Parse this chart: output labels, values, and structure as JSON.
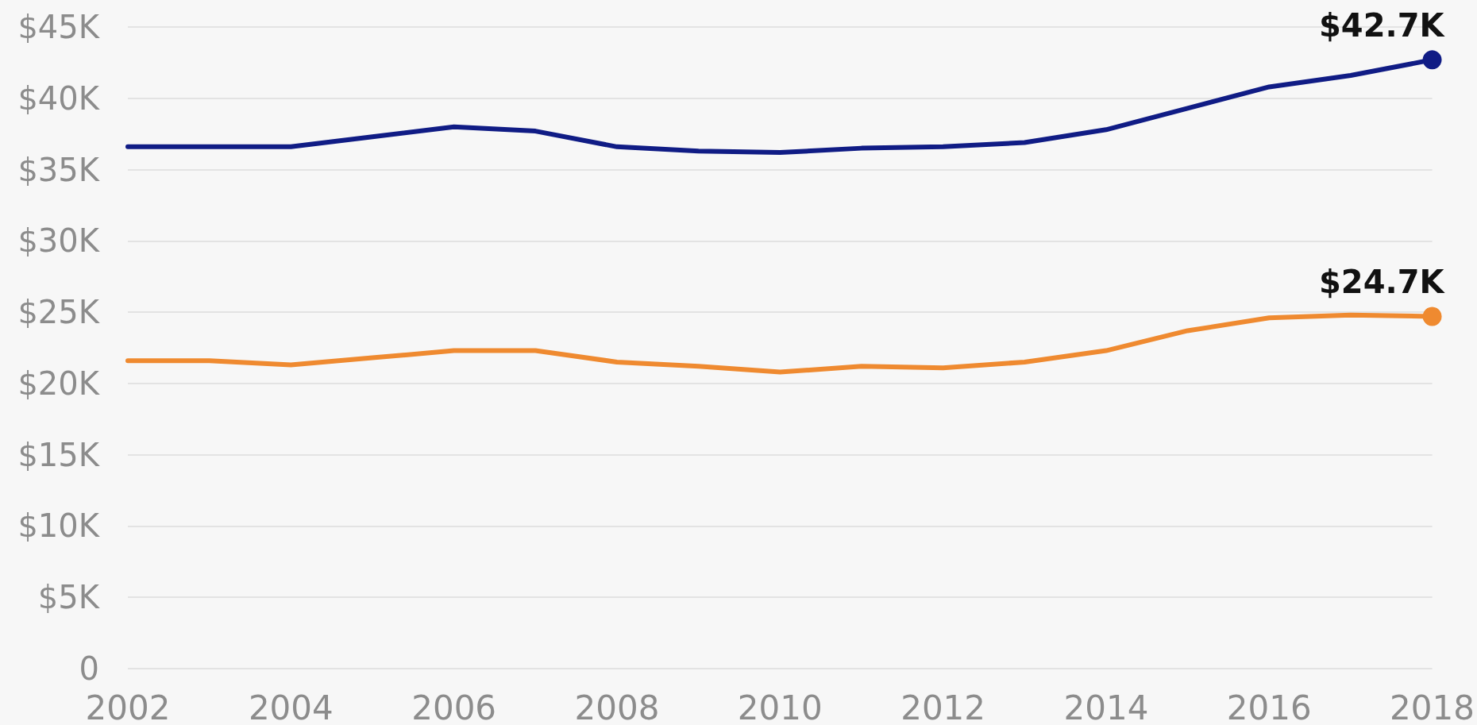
{
  "chart_data": {
    "type": "line",
    "x": [
      2002,
      2003,
      2004,
      2005,
      2006,
      2007,
      2008,
      2009,
      2010,
      2011,
      2012,
      2013,
      2014,
      2015,
      2016,
      2017,
      2018
    ],
    "series": [
      {
        "color": "#101c85",
        "values": [
          36600,
          36600,
          36600,
          37300,
          38000,
          37700,
          36600,
          36300,
          36200,
          36500,
          36600,
          36900,
          37800,
          39300,
          40800,
          41600,
          42700
        ]
      },
      {
        "color": "#ef8a30",
        "values": [
          21600,
          21600,
          21300,
          21800,
          22300,
          22300,
          21500,
          21200,
          20800,
          21200,
          21100,
          21500,
          22300,
          23700,
          24600,
          24800,
          24700
        ]
      },
      {
        "type": "scatter",
        "x": [
          2018
        ],
        "color": "#101c85",
        "values": [
          42700
        ],
        "value_labels": [
          "$42.7K"
        ],
        "marker": "circle"
      },
      {
        "type": "scatter",
        "x": [
          2018
        ],
        "color": "#ef8a30",
        "values": [
          24700
        ],
        "value_labels": [
          "$24.7K"
        ],
        "marker": "circle"
      }
    ],
    "xlim": [
      2002,
      2018
    ],
    "xticks": [
      2002,
      2004,
      2006,
      2008,
      2010,
      2012,
      2014,
      2016,
      2018
    ],
    "ylim": [
      0,
      45000
    ],
    "yticks": [
      0,
      {
        "value": 5000,
        "label": "$5K"
      },
      {
        "value": 10000,
        "label": "$10K"
      },
      {
        "value": 15000,
        "label": "$15K"
      },
      {
        "value": 20000,
        "label": "$20K"
      },
      {
        "value": 25000,
        "label": "$25K"
      },
      {
        "value": 30000,
        "label": "$30K"
      },
      {
        "value": 35000,
        "label": "$35K"
      },
      {
        "value": 40000,
        "label": "$40K"
      },
      {
        "value": 45000,
        "label": "$45K"
      }
    ],
    "grid": "y",
    "marker": "none",
    "line_style": "solid"
  }
}
